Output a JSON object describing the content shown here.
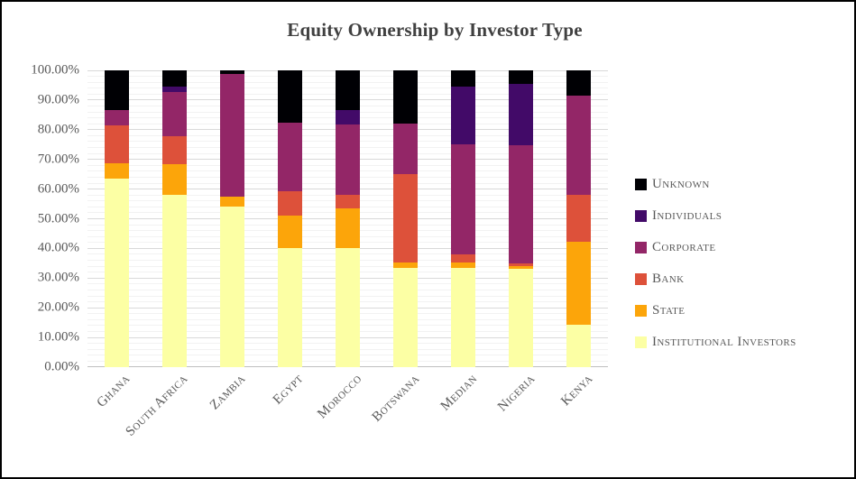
{
  "chart_data": {
    "type": "bar",
    "stacked": true,
    "title": "Equity Ownership by Investor Type",
    "xlabel": "",
    "ylabel": "",
    "categories": [
      "Ghana",
      "South Africa",
      "Zambia",
      "Egypt",
      "Morocco",
      "Botswana",
      "Median",
      "Nigeria",
      "Kenya"
    ],
    "series": [
      {
        "name": "Institutional Investors",
        "color": "#FCFFA4",
        "values": [
          63.4,
          58.1,
          54.0,
          40.1,
          40.1,
          33.5,
          33.3,
          33.1,
          14.3
        ]
      },
      {
        "name": "State",
        "color": "#FCA50A",
        "values": [
          5.4,
          10.3,
          3.4,
          10.9,
          13.4,
          1.9,
          2.0,
          1.0,
          28.1
        ]
      },
      {
        "name": "Bank",
        "color": "#DD513A",
        "values": [
          12.8,
          9.4,
          0.0,
          8.3,
          4.6,
          29.8,
          2.7,
          0.9,
          15.7
        ]
      },
      {
        "name": "Corporate",
        "color": "#932667",
        "values": [
          5.1,
          14.8,
          41.3,
          23.2,
          23.7,
          16.9,
          37.2,
          39.8,
          33.5
        ]
      },
      {
        "name": "Individuals",
        "color": "#420A68",
        "values": [
          0.0,
          1.9,
          0.0,
          0.0,
          4.8,
          0.0,
          19.4,
          20.7,
          0.0
        ]
      },
      {
        "name": "Unknown",
        "color": "#000004",
        "values": [
          13.3,
          5.5,
          1.3,
          17.5,
          13.4,
          17.9,
          5.4,
          4.5,
          8.4
        ]
      }
    ],
    "legend_order": [
      "Unknown",
      "Individuals",
      "Corporate",
      "Bank",
      "State",
      "Institutional Investors"
    ],
    "legend_position": "right",
    "y_axis": {
      "min": 0,
      "max": 100,
      "major_step": 10,
      "minor_step": 2,
      "major_color": "#D9D9D9",
      "minor_color": "#F2F2F2",
      "axis_color": "#BFBFBF",
      "ticks": [
        {
          "value": 0,
          "label": "0.00%"
        },
        {
          "value": 10,
          "label": "10.00%"
        },
        {
          "value": 20,
          "label": "20.00%"
        },
        {
          "value": 30,
          "label": "30.00%"
        },
        {
          "value": 40,
          "label": "40.00%"
        },
        {
          "value": 50,
          "label": "50.00%"
        },
        {
          "value": 60,
          "label": "60.00%"
        },
        {
          "value": 70,
          "label": "70.00%"
        },
        {
          "value": 80,
          "label": "80.00%"
        },
        {
          "value": 90,
          "label": "90.00%"
        },
        {
          "value": 100,
          "label": "100.00%"
        }
      ]
    },
    "text_color": "#595959",
    "title_color": "#404040",
    "frame_color": "#000000",
    "grid_on": true
  }
}
